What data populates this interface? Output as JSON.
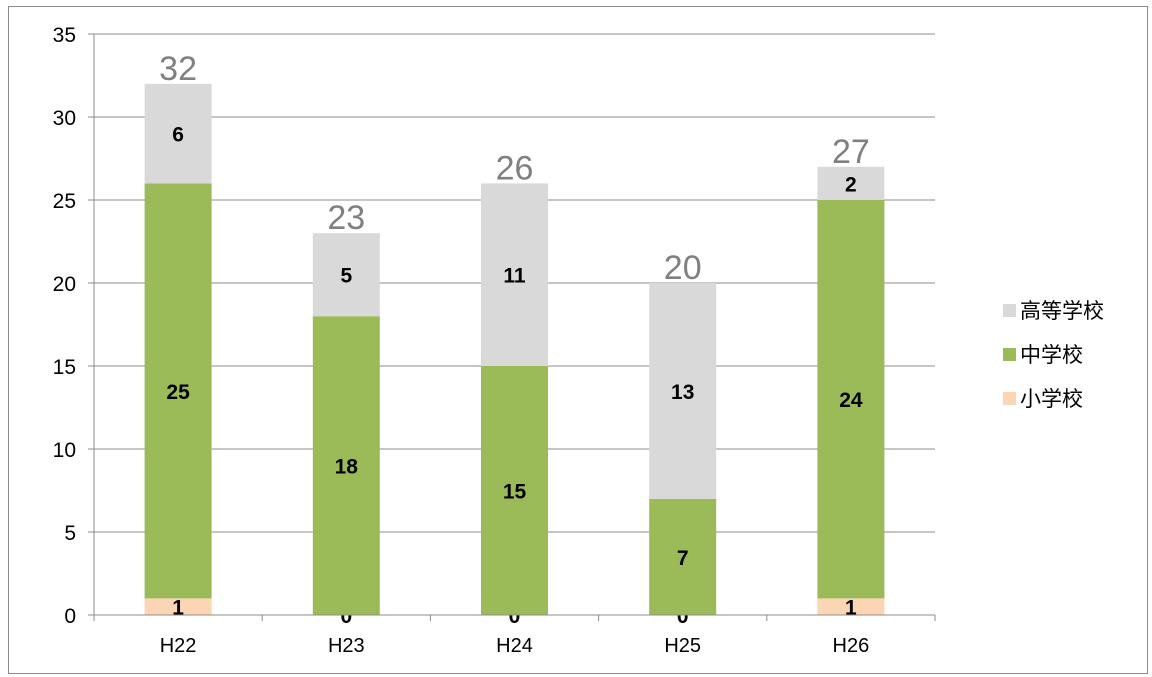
{
  "chart_data": {
    "type": "stacked-bar",
    "categories": [
      "H22",
      "H23",
      "H24",
      "H25",
      "H26"
    ],
    "series": [
      {
        "name": "小学校",
        "values": [
          1,
          0,
          0,
          0,
          1
        ],
        "color": "#fcd5b4"
      },
      {
        "name": "中学校",
        "values": [
          25,
          18,
          15,
          7,
          24
        ],
        "color": "#9bbb59"
      },
      {
        "name": "高等学校",
        "values": [
          6,
          5,
          11,
          13,
          2
        ],
        "color": "#d9d9d9"
      }
    ],
    "totals": [
      32,
      23,
      26,
      20,
      27
    ],
    "ylim": [
      0,
      35
    ],
    "yticks": [
      0,
      5,
      10,
      15,
      20,
      25,
      30,
      35
    ],
    "grid": true,
    "legend_position": "right",
    "legend_order": [
      "高等学校",
      "中学校",
      "小学校"
    ]
  }
}
